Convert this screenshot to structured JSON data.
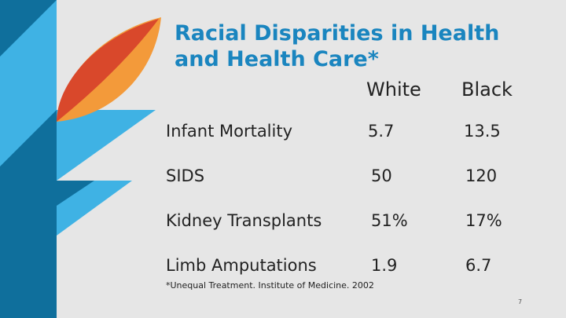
{
  "slide": {
    "title_line1": "Racial Disparities in Health",
    "title_line2": "and Health Care*",
    "columns": [
      "White",
      "Black"
    ],
    "rows": [
      {
        "label": "Infant Mortality",
        "white": "5.7",
        "black": "13.5"
      },
      {
        "label": "SIDS",
        "white": "50",
        "black": "120"
      },
      {
        "label": "Kidney Transplants",
        "white": "51%",
        "black": "17%"
      },
      {
        "label": "Limb Amputations",
        "white": "1.9",
        "black": "6.7"
      }
    ],
    "footnote": "*Unequal Treatment. Institute of Medicine. 2002",
    "page_number": "7"
  },
  "colors": {
    "title": "#1a85bf",
    "light_blue": "#3fb2e4",
    "dark_blue": "#0f6f9c",
    "leaf_orange": "#f39a3a",
    "leaf_red": "#d9482b"
  }
}
